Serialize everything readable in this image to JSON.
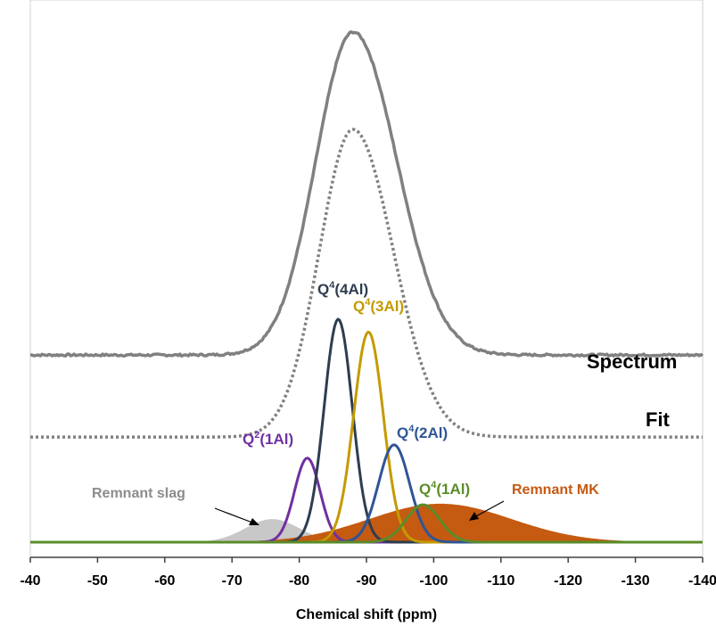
{
  "chart_data": {
    "type": "line",
    "title": "",
    "xlabel": "Chemical shift (ppm)",
    "ylabel": "",
    "x_range": [
      -40,
      -140
    ],
    "x_ticks": [
      "-40",
      "-50",
      "-60",
      "-70",
      "-80",
      "-90",
      "-100",
      "-110",
      "-120",
      "-130",
      "-140"
    ],
    "x_tick_values": [
      -40,
      -50,
      -60,
      -70,
      -80,
      -90,
      -100,
      -110,
      -120,
      -130,
      -140
    ],
    "grid": false,
    "series": [
      {
        "name": "Spectrum",
        "style": "solid",
        "color": "#808080",
        "baseline": 0.365,
        "peak_center": -88,
        "peak_height": 0.63,
        "sigma_left": 5.5,
        "sigma_right": 6.5
      },
      {
        "name": "Fit",
        "style": "dotted",
        "color": "#808080",
        "baseline": 0.205,
        "peak_center": -88,
        "peak_height": 0.6,
        "sigma_left": 5.0,
        "sigma_right": 6.0
      }
    ],
    "components": [
      {
        "name": "Remnant slag",
        "label": "Remnant slag",
        "center": -76,
        "height": 0.045,
        "sigma": 4.0,
        "fill": "#c8c8c8",
        "stroke": "#c8c8c8",
        "filled": true
      },
      {
        "name": "Remnant MK",
        "label": "Remnant MK",
        "center": -101,
        "height": 0.075,
        "sigma": 10.5,
        "fill": "#c55a11",
        "stroke": "#c55a11",
        "filled": true
      },
      {
        "name": "Q2(1Al)",
        "label_base": "Q",
        "label_sup": "2",
        "label_rest": "(1Al)",
        "center": -81.2,
        "height": 0.164,
        "sigma": 1.9,
        "stroke": "#7030a0",
        "filled": false
      },
      {
        "name": "Q4(4Al)",
        "label_base": "Q",
        "label_sup": "4",
        "label_rest": "(4Al)",
        "center": -85.8,
        "height": 0.435,
        "sigma": 2.1,
        "stroke": "#2e3d50",
        "filled": false
      },
      {
        "name": "Q4(3Al)",
        "label_base": "Q",
        "label_sup": "4",
        "label_rest": "(3Al)",
        "center": -90.3,
        "height": 0.41,
        "sigma": 2.2,
        "stroke": "#c49a00",
        "filled": false
      },
      {
        "name": "Q4(2Al)",
        "label_base": "Q",
        "label_sup": "4",
        "label_rest": "(2Al)",
        "center": -94.1,
        "height": 0.19,
        "sigma": 2.3,
        "stroke": "#2f5597",
        "filled": false
      },
      {
        "name": "Q4(1Al)",
        "label_base": "Q",
        "label_sup": "4",
        "label_rest": "(1Al)",
        "center": -98.4,
        "height": 0.073,
        "sigma": 2.5,
        "stroke": "#5b8c2a",
        "filled": false
      }
    ],
    "legend_labels": [
      "Spectrum",
      "Fit"
    ]
  }
}
